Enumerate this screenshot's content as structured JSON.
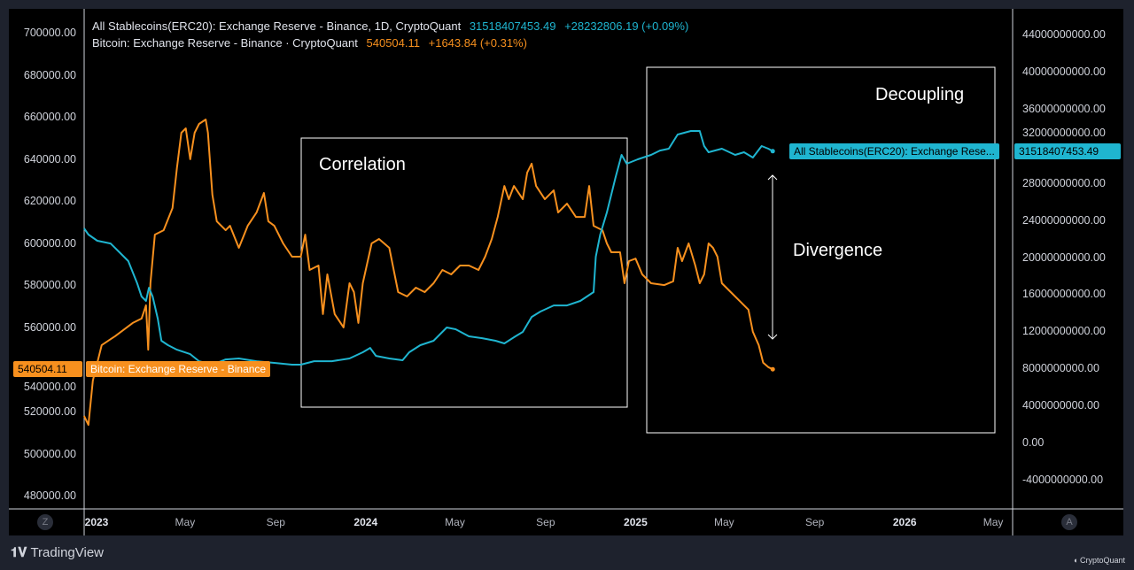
{
  "legend": {
    "stable": {
      "title": "All Stablecoins(ERC20): Exchange Reserve - Binance, 1D, CryptoQuant",
      "value": "31518407453.49",
      "change": "+28232806.19 (+0.09%)"
    },
    "btc": {
      "title": "Bitcoin: Exchange Reserve - Binance · CryptoQuant",
      "value": "540504.11",
      "change": "+1643.84 (+0.31%)"
    }
  },
  "price_tags": {
    "btc_value": "540504.11",
    "btc_label": "Bitcoin: Exchange Reserve - Binance",
    "stable_label": "All Stablecoins(ERC20): Exchange Rese...",
    "stable_value": "31518407453.49"
  },
  "annotations": {
    "correlation": "Correlation",
    "decoupling": "Decoupling",
    "divergence": "Divergence"
  },
  "axis_buttons": {
    "left": "Z",
    "right": "A"
  },
  "branding": {
    "tradingview": "TradingView",
    "cryptoquant": "CryptoQuant"
  },
  "colors": {
    "btc": "#f7901e",
    "stable": "#1fb5d0",
    "background": "#000000",
    "frame": "#1e222d"
  },
  "chart_data": {
    "type": "line",
    "grid": false,
    "x_ticks": [
      {
        "date": "2023-01-01",
        "label": "2023",
        "year": true
      },
      {
        "date": "2023-05-01",
        "label": "May"
      },
      {
        "date": "2023-09-01",
        "label": "Sep"
      },
      {
        "date": "2024-01-01",
        "label": "2024",
        "year": true
      },
      {
        "date": "2024-05-01",
        "label": "May"
      },
      {
        "date": "2024-09-01",
        "label": "Sep"
      },
      {
        "date": "2025-01-01",
        "label": "2025",
        "year": true
      },
      {
        "date": "2025-05-01",
        "label": "May"
      },
      {
        "date": "2025-09-01",
        "label": "Sep"
      },
      {
        "date": "2026-01-01",
        "label": "2026",
        "year": true
      },
      {
        "date": "2026-05-01",
        "label": "May"
      }
    ],
    "left_axis": {
      "range": [
        470000,
        712000
      ],
      "ticks": [
        "700000.00",
        "680000.00",
        "660000.00",
        "640000.00",
        "620000.00",
        "600000.00",
        "580000.00",
        "560000.00",
        "540000.00",
        "520000.00",
        "500000.00",
        "480000.00"
      ]
    },
    "right_axis": {
      "range": [
        -6000000000,
        46000000000
      ],
      "ticks": [
        "44000000000.00",
        "40000000000.00",
        "36000000000.00",
        "32000000000.00",
        "28000000000.00",
        "24000000000.00",
        "20000000000.00",
        "16000000000.00",
        "12000000000.00",
        "8000000000.00",
        "4000000000.00",
        "0.00",
        "-4000000000.00"
      ]
    },
    "series": [
      {
        "name": "Bitcoin: Exchange Reserve - Binance",
        "axis": "left",
        "points": [
          [
            "2022-12-15",
            518300
          ],
          [
            "2022-12-21",
            514100
          ],
          [
            "2022-12-27",
            535100
          ],
          [
            "2023-01-08",
            552000
          ],
          [
            "2023-01-26",
            556200
          ],
          [
            "2023-02-19",
            562500
          ],
          [
            "2023-03-03",
            564600
          ],
          [
            "2023-03-09",
            570900
          ],
          [
            "2023-03-12",
            549800
          ],
          [
            "2023-03-15",
            581400
          ],
          [
            "2023-03-21",
            604500
          ],
          [
            "2023-04-02",
            606600
          ],
          [
            "2023-04-14",
            617100
          ],
          [
            "2023-04-20",
            636100
          ],
          [
            "2023-04-26",
            652900
          ],
          [
            "2023-05-02",
            655000
          ],
          [
            "2023-05-08",
            640300
          ],
          [
            "2023-05-14",
            652900
          ],
          [
            "2023-05-20",
            657100
          ],
          [
            "2023-05-29",
            659200
          ],
          [
            "2023-06-01",
            652900
          ],
          [
            "2023-06-07",
            623500
          ],
          [
            "2023-06-13",
            610800
          ],
          [
            "2023-06-25",
            606600
          ],
          [
            "2023-07-01",
            608700
          ],
          [
            "2023-07-13",
            598200
          ],
          [
            "2023-07-25",
            608700
          ],
          [
            "2023-08-06",
            615000
          ],
          [
            "2023-08-16",
            624300
          ],
          [
            "2023-08-22",
            610800
          ],
          [
            "2023-08-30",
            608700
          ],
          [
            "2023-09-11",
            600300
          ],
          [
            "2023-09-23",
            594000
          ],
          [
            "2023-10-05",
            594000
          ],
          [
            "2023-10-11",
            604500
          ],
          [
            "2023-10-17",
            587700
          ],
          [
            "2023-10-29",
            589800
          ],
          [
            "2023-11-04",
            566700
          ],
          [
            "2023-11-10",
            585600
          ],
          [
            "2023-11-20",
            566700
          ],
          [
            "2023-12-02",
            560400
          ],
          [
            "2023-12-10",
            581400
          ],
          [
            "2023-12-16",
            577200
          ],
          [
            "2023-12-22",
            562500
          ],
          [
            "2023-12-28",
            581400
          ],
          [
            "2024-01-09",
            600300
          ],
          [
            "2024-01-19",
            602400
          ],
          [
            "2024-02-02",
            598200
          ],
          [
            "2024-02-14",
            577200
          ],
          [
            "2024-02-26",
            575100
          ],
          [
            "2024-03-09",
            579300
          ],
          [
            "2024-03-21",
            577200
          ],
          [
            "2024-04-02",
            581400
          ],
          [
            "2024-04-14",
            587700
          ],
          [
            "2024-04-26",
            585600
          ],
          [
            "2024-05-08",
            589800
          ],
          [
            "2024-05-20",
            589800
          ],
          [
            "2024-06-02",
            587700
          ],
          [
            "2024-06-11",
            594000
          ],
          [
            "2024-06-20",
            602400
          ],
          [
            "2024-06-28",
            612900
          ],
          [
            "2024-07-07",
            627600
          ],
          [
            "2024-07-13",
            621300
          ],
          [
            "2024-07-20",
            627600
          ],
          [
            "2024-08-01",
            621300
          ],
          [
            "2024-08-07",
            634000
          ],
          [
            "2024-08-13",
            638200
          ],
          [
            "2024-08-19",
            627600
          ],
          [
            "2024-08-31",
            621300
          ],
          [
            "2024-09-12",
            625500
          ],
          [
            "2024-09-18",
            615000
          ],
          [
            "2024-09-30",
            619200
          ],
          [
            "2024-10-12",
            612900
          ],
          [
            "2024-10-24",
            612900
          ],
          [
            "2024-10-30",
            627600
          ],
          [
            "2024-11-05",
            608700
          ],
          [
            "2024-11-17",
            606600
          ],
          [
            "2024-11-23",
            600300
          ],
          [
            "2024-11-29",
            596100
          ],
          [
            "2024-12-11",
            596100
          ],
          [
            "2024-12-17",
            581400
          ],
          [
            "2024-12-23",
            591900
          ],
          [
            "2025-01-01",
            593100
          ],
          [
            "2025-01-10",
            585600
          ],
          [
            "2025-01-22",
            581400
          ],
          [
            "2025-02-09",
            580500
          ],
          [
            "2025-02-21",
            582300
          ],
          [
            "2025-02-27",
            598200
          ],
          [
            "2025-03-05",
            591900
          ],
          [
            "2025-03-14",
            600300
          ],
          [
            "2025-03-23",
            589800
          ],
          [
            "2025-03-29",
            581400
          ],
          [
            "2025-04-04",
            585600
          ],
          [
            "2025-04-10",
            600300
          ],
          [
            "2025-04-16",
            598200
          ],
          [
            "2025-04-22",
            594000
          ],
          [
            "2025-04-28",
            581400
          ],
          [
            "2025-05-10",
            577200
          ],
          [
            "2025-05-22",
            573000
          ],
          [
            "2025-06-03",
            568800
          ],
          [
            "2025-06-09",
            558300
          ],
          [
            "2025-06-17",
            552000
          ],
          [
            "2025-06-23",
            543600
          ],
          [
            "2025-06-30",
            541500
          ],
          [
            "2025-07-06",
            540504.11
          ]
        ]
      },
      {
        "name": "All Stablecoins(ERC20): Exchange Reserve - Binance",
        "axis": "right",
        "points": [
          [
            "2022-12-15",
            23200000000
          ],
          [
            "2022-12-21",
            22530000000
          ],
          [
            "2023-01-02",
            21860000000
          ],
          [
            "2023-01-20",
            21570000000
          ],
          [
            "2023-02-01",
            20620000000
          ],
          [
            "2023-02-13",
            19670000000
          ],
          [
            "2023-02-25",
            17280000000
          ],
          [
            "2023-03-03",
            15850000000
          ],
          [
            "2023-03-09",
            15370000000
          ],
          [
            "2023-03-13",
            16800000000
          ],
          [
            "2023-03-18",
            15850000000
          ],
          [
            "2023-03-25",
            13460000000
          ],
          [
            "2023-03-30",
            11080000000
          ],
          [
            "2023-04-08",
            10600000000
          ],
          [
            "2023-04-20",
            10120000000
          ],
          [
            "2023-05-08",
            9640000000
          ],
          [
            "2023-05-20",
            8880000000
          ],
          [
            "2023-06-07",
            8500000000
          ],
          [
            "2023-06-25",
            9070000000
          ],
          [
            "2023-07-13",
            9170000000
          ],
          [
            "2023-08-06",
            8880000000
          ],
          [
            "2023-08-30",
            8690000000
          ],
          [
            "2023-09-23",
            8500000000
          ],
          [
            "2023-10-05",
            8500000000
          ],
          [
            "2023-10-23",
            8880000000
          ],
          [
            "2023-11-16",
            8880000000
          ],
          [
            "2023-12-10",
            9170000000
          ],
          [
            "2023-12-28",
            9840000000
          ],
          [
            "2024-01-07",
            10310000000
          ],
          [
            "2024-01-15",
            9450000000
          ],
          [
            "2024-02-02",
            9170000000
          ],
          [
            "2024-02-20",
            8980000000
          ],
          [
            "2024-02-29",
            9840000000
          ],
          [
            "2024-03-15",
            10600000000
          ],
          [
            "2024-04-02",
            11080000000
          ],
          [
            "2024-04-20",
            12510000000
          ],
          [
            "2024-05-02",
            12320000000
          ],
          [
            "2024-05-20",
            11560000000
          ],
          [
            "2024-06-07",
            11360000000
          ],
          [
            "2024-06-25",
            11080000000
          ],
          [
            "2024-07-07",
            10790000000
          ],
          [
            "2024-07-22",
            11560000000
          ],
          [
            "2024-08-01",
            12030000000
          ],
          [
            "2024-08-13",
            13650000000
          ],
          [
            "2024-08-25",
            14230000000
          ],
          [
            "2024-09-12",
            14890000000
          ],
          [
            "2024-09-30",
            14890000000
          ],
          [
            "2024-10-18",
            15370000000
          ],
          [
            "2024-11-05",
            16330000000
          ],
          [
            "2024-11-08",
            20140000000
          ],
          [
            "2024-11-14",
            22530000000
          ],
          [
            "2024-11-23",
            24910000000
          ],
          [
            "2024-12-05",
            28730000000
          ],
          [
            "2024-12-13",
            31120000000
          ],
          [
            "2024-12-20",
            30160000000
          ],
          [
            "2025-01-04",
            30640000000
          ],
          [
            "2025-01-22",
            31120000000
          ],
          [
            "2025-02-03",
            31590000000
          ],
          [
            "2025-02-15",
            31790000000
          ],
          [
            "2025-02-27",
            33310000000
          ],
          [
            "2025-03-17",
            33690000000
          ],
          [
            "2025-03-29",
            33690000000
          ],
          [
            "2025-04-04",
            32070000000
          ],
          [
            "2025-04-10",
            31400000000
          ],
          [
            "2025-04-28",
            31790000000
          ],
          [
            "2025-05-16",
            31120000000
          ],
          [
            "2025-05-28",
            31400000000
          ],
          [
            "2025-06-09",
            30830000000
          ],
          [
            "2025-06-21",
            32070000000
          ],
          [
            "2025-06-30",
            31790000000
          ],
          [
            "2025-07-06",
            31518407453.49
          ]
        ]
      }
    ]
  }
}
